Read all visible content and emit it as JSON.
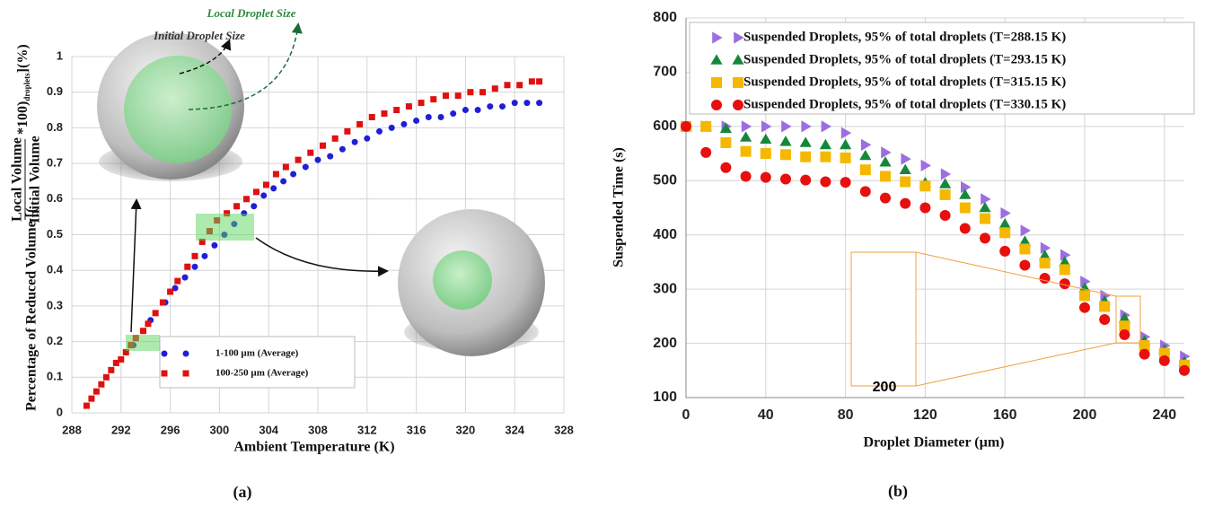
{
  "chart_data": [
    {
      "type": "scatter",
      "caption": "(a)",
      "xlabel": "Ambient Temperature (K)",
      "ylabel": {
        "prefix": "Percentage of Reduced Volume [(",
        "numerator": "Local Volume",
        "denominator": "Initial Volume",
        "suffix": "*100)",
        "subscript": "droplets",
        "end": "](%)"
      },
      "annotations": [
        "Local Droplet Size",
        "Initial Droplet Size"
      ],
      "xlim": [
        288,
        328
      ],
      "xticks": [
        288,
        292,
        296,
        300,
        304,
        308,
        312,
        316,
        320,
        324,
        328
      ],
      "ylim": [
        0,
        1
      ],
      "yticks": [
        0,
        0.1,
        0.2,
        0.3,
        0.4,
        0.5,
        0.6,
        0.7,
        0.8,
        0.9,
        1
      ],
      "grid": true,
      "series": [
        {
          "name": "1-100 µm (Average)",
          "color": "#1f1fd6",
          "marker": "circle",
          "x": [
            293,
            294.4,
            295.6,
            296.4,
            297.2,
            298,
            298.8,
            299.6,
            300.4,
            301.2,
            302,
            302.8,
            303.6,
            304.4,
            305.2,
            306,
            307,
            308,
            309,
            310,
            311,
            312,
            313,
            314,
            315,
            316,
            317,
            318,
            319,
            320,
            321,
            322,
            323,
            324,
            325,
            326
          ],
          "values": [
            0.19,
            0.26,
            0.31,
            0.35,
            0.38,
            0.41,
            0.44,
            0.47,
            0.5,
            0.53,
            0.56,
            0.58,
            0.61,
            0.63,
            0.65,
            0.67,
            0.69,
            0.71,
            0.72,
            0.74,
            0.76,
            0.77,
            0.79,
            0.8,
            0.81,
            0.82,
            0.83,
            0.83,
            0.84,
            0.85,
            0.85,
            0.86,
            0.86,
            0.87,
            0.87,
            0.87
          ]
        },
        {
          "name": "100-250 µm (Average)",
          "color": "#e01010",
          "marker": "square",
          "x": [
            289.2,
            289.6,
            290,
            290.4,
            290.8,
            291.2,
            291.6,
            292,
            292.4,
            292.8,
            293.2,
            293.8,
            294.2,
            294.8,
            295.4,
            296,
            296.6,
            297.4,
            298,
            298.6,
            299.2,
            299.8,
            300.6,
            301.4,
            302.2,
            303,
            303.8,
            304.6,
            305.4,
            306.4,
            307.4,
            308.4,
            309.4,
            310.4,
            311.4,
            312.4,
            313.4,
            314.4,
            315.4,
            316.4,
            317.4,
            318.4,
            319.4,
            320.4,
            321.4,
            322.4,
            323.4,
            324.4,
            325.4,
            326
          ],
          "values": [
            0.02,
            0.04,
            0.06,
            0.08,
            0.1,
            0.12,
            0.14,
            0.15,
            0.17,
            0.19,
            0.21,
            0.23,
            0.25,
            0.28,
            0.31,
            0.34,
            0.37,
            0.41,
            0.44,
            0.48,
            0.51,
            0.54,
            0.56,
            0.58,
            0.6,
            0.62,
            0.64,
            0.67,
            0.69,
            0.71,
            0.73,
            0.75,
            0.77,
            0.79,
            0.81,
            0.83,
            0.84,
            0.85,
            0.86,
            0.87,
            0.88,
            0.89,
            0.89,
            0.9,
            0.9,
            0.91,
            0.92,
            0.92,
            0.93,
            0.93
          ]
        }
      ]
    },
    {
      "type": "scatter",
      "caption": "(b)",
      "xlabel": "Droplet Diameter (µm)",
      "ylabel": "Suspended Time (s)",
      "inset_label": "200",
      "xlim": [
        0,
        250
      ],
      "xticks": [
        0,
        40,
        80,
        120,
        160,
        200,
        240
      ],
      "ylim": [
        100,
        800
      ],
      "yticks": [
        100,
        200,
        300,
        400,
        500,
        600,
        700,
        800
      ],
      "grid": true,
      "x": [
        0,
        10,
        20,
        30,
        40,
        50,
        60,
        70,
        80,
        90,
        100,
        110,
        120,
        130,
        140,
        150,
        160,
        170,
        180,
        190,
        200,
        210,
        220,
        230,
        240,
        250
      ],
      "series": [
        {
          "name": "Suspended Droplets, 95% of total droplets (T=288.15 K)",
          "color": "#9b6fe0",
          "marker": "triangle-right",
          "values": [
            600,
            600,
            600,
            600,
            600,
            600,
            600,
            600,
            588,
            566,
            552,
            540,
            528,
            512,
            488,
            466,
            440,
            408,
            376,
            363,
            314,
            288,
            252,
            212,
            196,
            176
          ]
        },
        {
          "name": "Suspended Droplets, 95% of total droplets (T=293.15 K)",
          "color": "#16873a",
          "marker": "triangle-up",
          "values": [
            600,
            600,
            596,
            580,
            576,
            572,
            570,
            566,
            566,
            546,
            534,
            520,
            496,
            494,
            474,
            450,
            420,
            388,
            362,
            350,
            302,
            278,
            246,
            204,
            188,
            166
          ]
        },
        {
          "name": "Suspended Droplets, 95% of total droplets (T=315.15 K)",
          "color": "#f5b800",
          "marker": "square",
          "values": [
            600,
            600,
            570,
            554,
            550,
            548,
            544,
            544,
            542,
            520,
            508,
            498,
            490,
            474,
            450,
            430,
            404,
            374,
            348,
            336,
            288,
            268,
            232,
            196,
            182,
            160
          ]
        },
        {
          "name": "Suspended Droplets, 95% of total droplets (T=330.15 K)",
          "color": "#e80f0f",
          "marker": "circle",
          "values": [
            600,
            552,
            524,
            508,
            506,
            503,
            501,
            498,
            497,
            480,
            468,
            458,
            450,
            436,
            412,
            394,
            370,
            344,
            320,
            310,
            266,
            244,
            216,
            180,
            168,
            150
          ]
        }
      ]
    }
  ]
}
